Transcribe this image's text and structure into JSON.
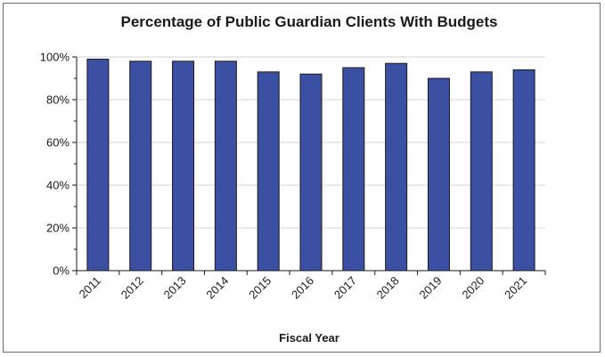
{
  "chart_data": {
    "type": "bar",
    "title": "Percentage of Public Guardian Clients With Budgets",
    "xlabel": "Fiscal Year",
    "ylabel": "",
    "categories": [
      "2011",
      "2012",
      "2013",
      "2014",
      "2015",
      "2016",
      "2017",
      "2018",
      "2019",
      "2020",
      "2021"
    ],
    "values": [
      99,
      98,
      98,
      98,
      93,
      92,
      95,
      97,
      90,
      93,
      94
    ],
    "ylim": [
      0,
      100
    ],
    "yticks": [
      0,
      20,
      40,
      60,
      80,
      100
    ],
    "ytick_labels": [
      "0%",
      "20%",
      "40%",
      "60%",
      "80%",
      "100%"
    ],
    "grid": true,
    "legend": "none",
    "bar_color": "#3b4fa3",
    "bar_edge_color": "#1a1a1a"
  }
}
